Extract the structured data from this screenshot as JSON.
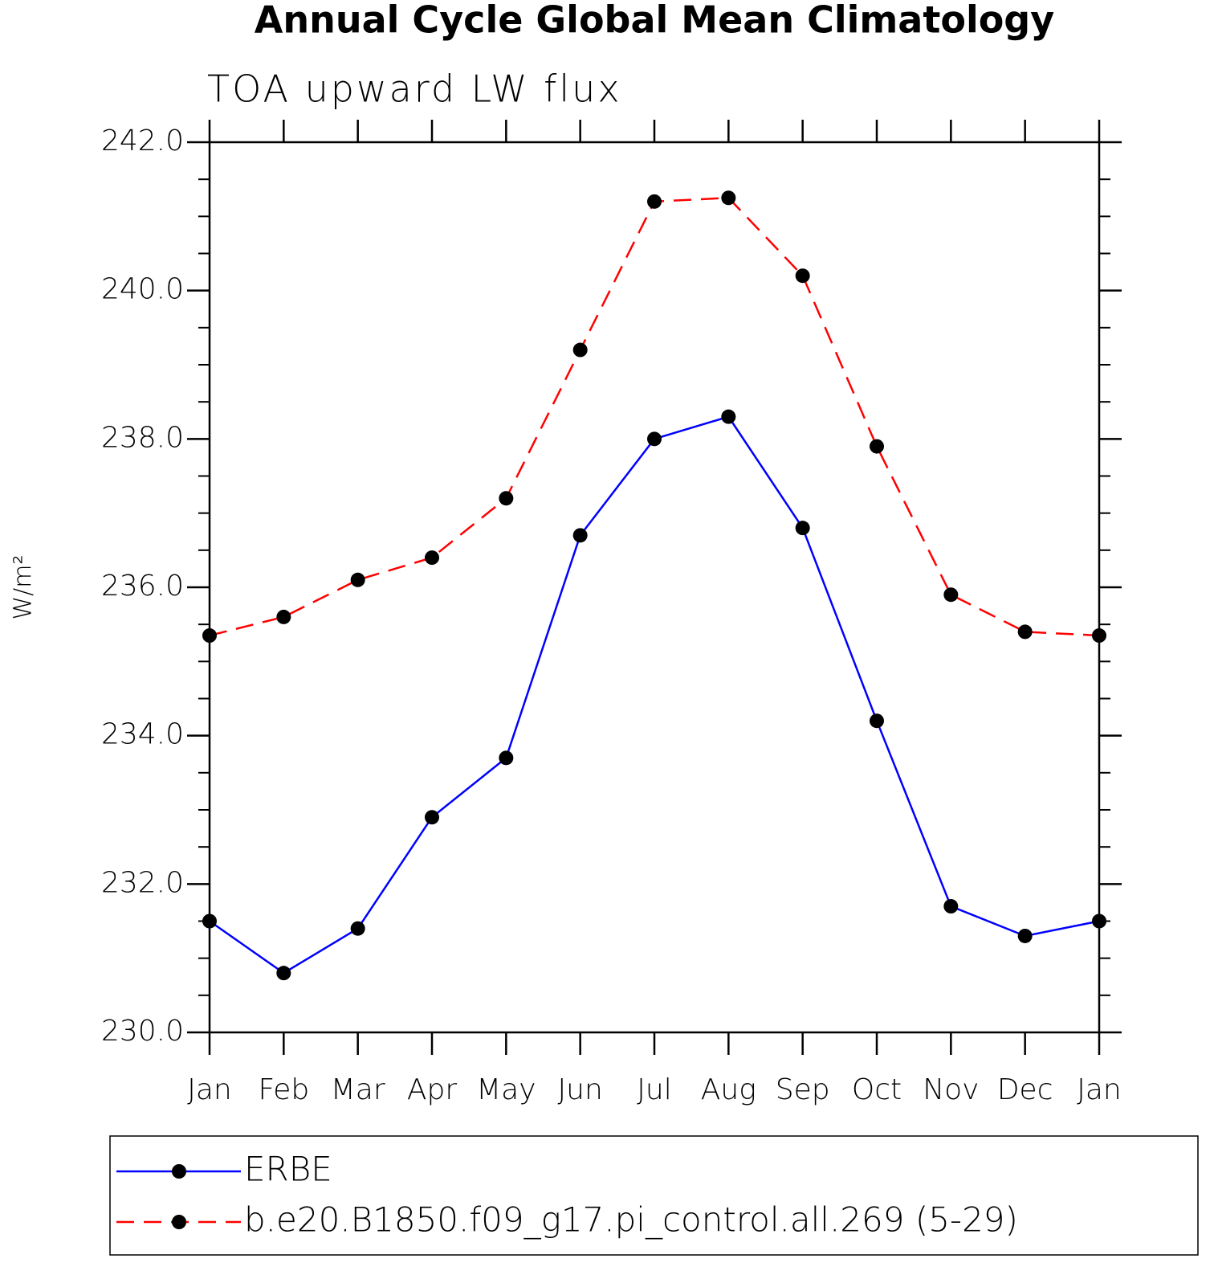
{
  "chart_data": {
    "type": "line",
    "title": "Annual Cycle Global Mean Climatology",
    "subtitle": "TOA upward LW flux",
    "y_label": "W/m²",
    "categories": [
      "Jan",
      "Feb",
      "Mar",
      "Apr",
      "May",
      "Jun",
      "Jul",
      "Aug",
      "Sep",
      "Oct",
      "Nov",
      "Dec",
      "Jan"
    ],
    "series": [
      {
        "name": "ERBE",
        "color": "#0000ff",
        "dash": false,
        "values": [
          231.5,
          230.8,
          231.4,
          232.9,
          233.7,
          236.7,
          238.0,
          238.3,
          236.8,
          234.2,
          231.7,
          231.3,
          231.5
        ]
      },
      {
        "name": "b.e20.B1850.f09_g17.pi_control.all.269 (5-29)",
        "color": "#ff0000",
        "dash": true,
        "values": [
          235.35,
          235.6,
          236.1,
          236.4,
          237.2,
          239.2,
          241.2,
          241.25,
          240.2,
          237.9,
          235.9,
          235.4,
          235.35
        ]
      }
    ],
    "ylim": [
      230,
      242
    ],
    "yticks": [
      {
        "value": 230,
        "label": "230.0"
      },
      {
        "value": 232,
        "label": "232.0"
      },
      {
        "value": 234,
        "label": "234.0"
      },
      {
        "value": 236,
        "label": "236.0"
      },
      {
        "value": 238,
        "label": "238.0"
      },
      {
        "value": 240,
        "label": "240.0"
      },
      {
        "value": 242,
        "label": "242.0"
      }
    ],
    "yminorticks": [
      230.5,
      231,
      231.5,
      232.5,
      233,
      233.5,
      234.5,
      235,
      235.5,
      236.5,
      237,
      237.5,
      238.5,
      239,
      239.5,
      240.5,
      241,
      241.5
    ],
    "legend": "bottom"
  }
}
